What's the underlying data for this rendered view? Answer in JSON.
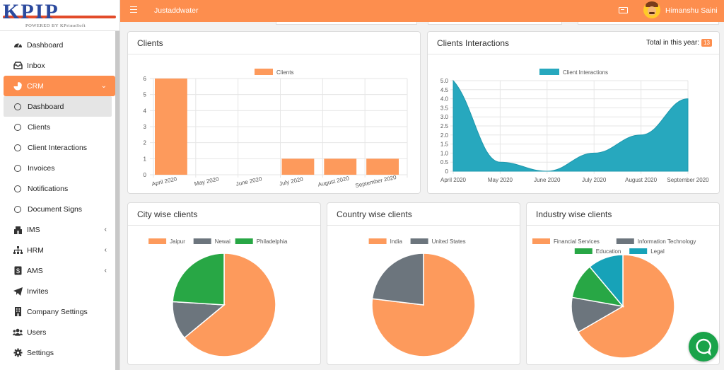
{
  "app": {
    "logo_text": "KPIP",
    "logo_sub": "POWERED BY KPrimeSoft",
    "brand": "Justaddwater",
    "user_name": "Himanshu Saini"
  },
  "sidebar": {
    "items": [
      {
        "label": "Dashboard",
        "icon": "tachometer-icon"
      },
      {
        "label": "Inbox",
        "icon": "inbox-icon"
      },
      {
        "label": "CRM",
        "icon": "pie-chart-icon"
      },
      {
        "label": "Dashboard",
        "icon": "circle-icon"
      },
      {
        "label": "Clients",
        "icon": "circle-icon"
      },
      {
        "label": "Client Interactions",
        "icon": "circle-icon"
      },
      {
        "label": "Invoices",
        "icon": "circle-icon"
      },
      {
        "label": "Notifications",
        "icon": "circle-icon"
      },
      {
        "label": "Document Signs",
        "icon": "circle-icon"
      },
      {
        "label": "IMS",
        "icon": "warehouse-icon"
      },
      {
        "label": "HRM",
        "icon": "sitemap-icon"
      },
      {
        "label": "AMS",
        "icon": "dollar-file-icon"
      },
      {
        "label": "Invites",
        "icon": "paper-plane-icon"
      },
      {
        "label": "Company Settings",
        "icon": "building-icon"
      },
      {
        "label": "Users",
        "icon": "users-icon"
      },
      {
        "label": "Settings",
        "icon": "gear-icon"
      }
    ]
  },
  "cards": {
    "clients_title": "Clients",
    "interactions_title": "Clients Interactions",
    "total_label": "Total in this year:",
    "total_value": "13",
    "city_title": "City wise clients",
    "country_title": "Country wise clients",
    "industry_title": "Industry wise clients"
  },
  "colors": {
    "accent": "#fd8e4e",
    "bar": "#fd9a5c",
    "teal": "#27a8be",
    "gray": "#6c757d",
    "green": "#28a745",
    "cyan": "#17a2b8"
  },
  "chart_data": [
    {
      "type": "bar",
      "legend": "Clients",
      "categories": [
        "April 2020",
        "May 2020",
        "June 2020",
        "July 2020",
        "August 2020",
        "September 2020"
      ],
      "values": [
        6,
        0,
        0,
        1,
        1,
        1
      ],
      "ylim": [
        0,
        6
      ],
      "yticks": [
        "0",
        "1",
        "2",
        "3",
        "4",
        "5",
        "6"
      ]
    },
    {
      "type": "area",
      "legend": "Client Interactions",
      "categories": [
        "April 2020",
        "May 2020",
        "June 2020",
        "July 2020",
        "August 2020",
        "September 2020"
      ],
      "values": [
        5,
        0.5,
        0,
        1,
        2,
        4
      ],
      "ylim": [
        0,
        5
      ],
      "yticks": [
        "0",
        "0.5",
        "1.0",
        "1.5",
        "2.0",
        "2.5",
        "3.0",
        "3.5",
        "4.0",
        "4.5",
        "5.0"
      ]
    },
    {
      "type": "pie",
      "labels": [
        "Jaipur",
        "Newai",
        "Philadelphia"
      ],
      "values": [
        8,
        1.5,
        3
      ],
      "colors": [
        "#fd9a5c",
        "#6c757d",
        "#28a745"
      ]
    },
    {
      "type": "pie",
      "labels": [
        "India",
        "United States"
      ],
      "values": [
        10,
        3
      ],
      "colors": [
        "#fd9a5c",
        "#6c757d"
      ]
    },
    {
      "type": "pie",
      "labels": [
        "Financial Services",
        "Information Technology",
        "Education",
        "Legal"
      ],
      "values": [
        9,
        1.5,
        1.5,
        1.5
      ],
      "colors": [
        "#fd9a5c",
        "#6c757d",
        "#28a745",
        "#17a2b8"
      ]
    }
  ]
}
